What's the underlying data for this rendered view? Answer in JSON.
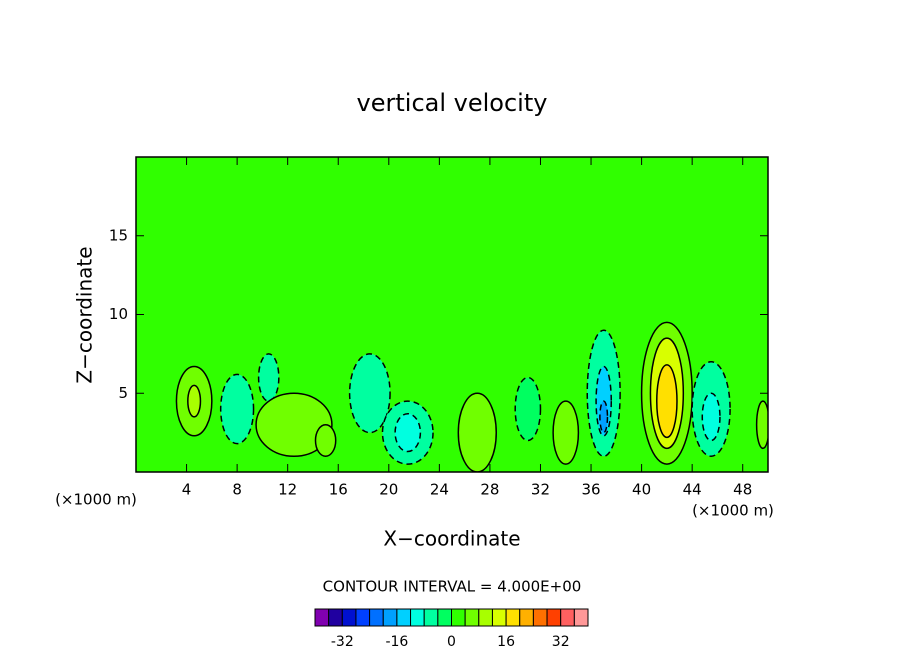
{
  "chart_data": {
    "type": "contour",
    "title": "vertical velocity",
    "x_label": "X−coordinate",
    "y_label": "Z−coordinate",
    "x_units": "(×1000 m)",
    "y_units": "(×1000 m)",
    "xlim": [
      0,
      50
    ],
    "ylim": [
      0,
      20
    ],
    "xticks": [
      4,
      8,
      12,
      16,
      20,
      24,
      28,
      32,
      36,
      40,
      44,
      48
    ],
    "yticks": [
      5,
      10,
      15
    ],
    "annotation": "CONTOUR INTERVAL = 4.000E+00",
    "levels": [
      -40,
      -36,
      -32,
      -28,
      -24,
      -20,
      -16,
      -12,
      -8,
      -4,
      0,
      4,
      8,
      12,
      16,
      20,
      24,
      28,
      32,
      36,
      40
    ],
    "colors": [
      "#8000b0",
      "#2000a0",
      "#0010d0",
      "#0040ff",
      "#0070ff",
      "#00a0ff",
      "#00d0ff",
      "#00ffe0",
      "#00ffa0",
      "#00ff60",
      "#30ff00",
      "#70ff00",
      "#a8ff00",
      "#d8ff00",
      "#ffe000",
      "#ffb000",
      "#ff7000",
      "#ff4000",
      "#ff6060",
      "#ff9898"
    ],
    "colorbar_ticks": [
      -32,
      -16,
      0,
      16,
      32
    ],
    "field": [
      {
        "x": 4.6,
        "z": 4.5,
        "dx": 1.4,
        "dz": 2.2,
        "value": 6
      },
      {
        "x": 4.6,
        "z": 4.5,
        "dx": 0.5,
        "dz": 1.0,
        "value": 10
      },
      {
        "x": 8,
        "z": 4,
        "dx": 1.3,
        "dz": 2.2,
        "value": -6
      },
      {
        "x": 10.5,
        "z": 6,
        "dx": 0.8,
        "dz": 1.5,
        "value": -5
      },
      {
        "x": 12.5,
        "z": 3,
        "dx": 3,
        "dz": 2,
        "value": 5
      },
      {
        "x": 15,
        "z": 2,
        "dx": 0.8,
        "dz": 1,
        "value": 5
      },
      {
        "x": 18.5,
        "z": 5,
        "dx": 1.6,
        "dz": 2.5,
        "value": -5
      },
      {
        "x": 21.5,
        "z": 2.5,
        "dx": 2,
        "dz": 2,
        "value": -6
      },
      {
        "x": 21.5,
        "z": 2.5,
        "dx": 1,
        "dz": 1.2,
        "value": -10
      },
      {
        "x": 27,
        "z": 2.5,
        "dx": 1.5,
        "dz": 2.5,
        "value": 6
      },
      {
        "x": 31,
        "z": 4,
        "dx": 1,
        "dz": 2,
        "value": -4
      },
      {
        "x": 34,
        "z": 2.5,
        "dx": 1,
        "dz": 2,
        "value": 5
      },
      {
        "x": 37,
        "z": 5,
        "dx": 1.3,
        "dz": 4,
        "value": -6
      },
      {
        "x": 37,
        "z": 4.5,
        "dx": 0.6,
        "dz": 2.2,
        "value": -14
      },
      {
        "x": 37,
        "z": 3.5,
        "dx": 0.3,
        "dz": 1,
        "value": -18
      },
      {
        "x": 42,
        "z": 5,
        "dx": 2,
        "dz": 4.5,
        "value": 6
      },
      {
        "x": 42,
        "z": 5,
        "dx": 1.3,
        "dz": 3.5,
        "value": 12
      },
      {
        "x": 42,
        "z": 4.5,
        "dx": 0.8,
        "dz": 2.3,
        "value": 16
      },
      {
        "x": 45.5,
        "z": 4,
        "dx": 1.5,
        "dz": 3,
        "value": -6
      },
      {
        "x": 45.5,
        "z": 3.5,
        "dx": 0.7,
        "dz": 1.5,
        "value": -10
      },
      {
        "x": 49.6,
        "z": 3,
        "dx": 0.5,
        "dz": 1.5,
        "value": 5
      }
    ]
  }
}
